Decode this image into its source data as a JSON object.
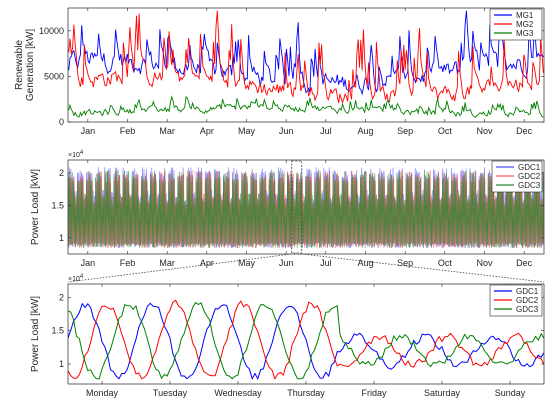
{
  "chart_data": [
    {
      "type": "line",
      "ylabel": [
        "Renewable",
        "Generation [kW]"
      ],
      "categories": [
        "Jan",
        "Feb",
        "Mar",
        "Apr",
        "May",
        "Jun",
        "Jul",
        "Aug",
        "Sep",
        "Oct",
        "Nov",
        "Dec"
      ],
      "ylim": [
        0,
        12500
      ],
      "yticks": [
        "0",
        "5000",
        "10000"
      ],
      "grid": false,
      "legend": "top-right",
      "series": [
        {
          "name": "MG1",
          "color": "#0000ff",
          "base": 5500,
          "amp": 3500,
          "noise": 900
        },
        {
          "name": "MG2",
          "color": "#ff0000",
          "base": 3800,
          "amp": 4500,
          "noise": 800
        },
        {
          "name": "MG3",
          "color": "#008000",
          "base": 1200,
          "amp": 900,
          "noise": 300
        }
      ]
    },
    {
      "type": "line",
      "ylabel": [
        "Power Load [kW]"
      ],
      "categories": [
        "Jan",
        "Feb",
        "Mar",
        "Apr",
        "May",
        "Jun",
        "Jul",
        "Aug",
        "Sep",
        "Oct",
        "Nov",
        "Dec"
      ],
      "ylim": [
        0.75,
        2.2
      ],
      "yticks": [
        "1",
        "1.5",
        "2"
      ],
      "exponent": "×10",
      "exponent_power": "4",
      "grid": false,
      "legend": "top-right",
      "series": [
        {
          "name": "GDC1",
          "color": "#4d4dff"
        },
        {
          "name": "GDC2",
          "color": "#ff5a5a"
        },
        {
          "name": "GDC3",
          "color": "#2e8b2e"
        }
      ]
    },
    {
      "type": "line",
      "ylabel": [
        "Power Load [kW]"
      ],
      "categories": [
        "Monday",
        "Tuesday",
        "Wednesday",
        "Thursday",
        "Friday",
        "Saturday",
        "Sunday"
      ],
      "ylim": [
        0.7,
        2.2
      ],
      "yticks": [
        "1",
        "1.5",
        "2"
      ],
      "exponent": "×10",
      "exponent_power": "4",
      "grid": false,
      "legend": "top-right",
      "series": [
        {
          "name": "GDC1",
          "color": "#0000ff"
        },
        {
          "name": "GDC2",
          "color": "#ff0000"
        },
        {
          "name": "GDC3",
          "color": "#008000"
        }
      ]
    }
  ]
}
